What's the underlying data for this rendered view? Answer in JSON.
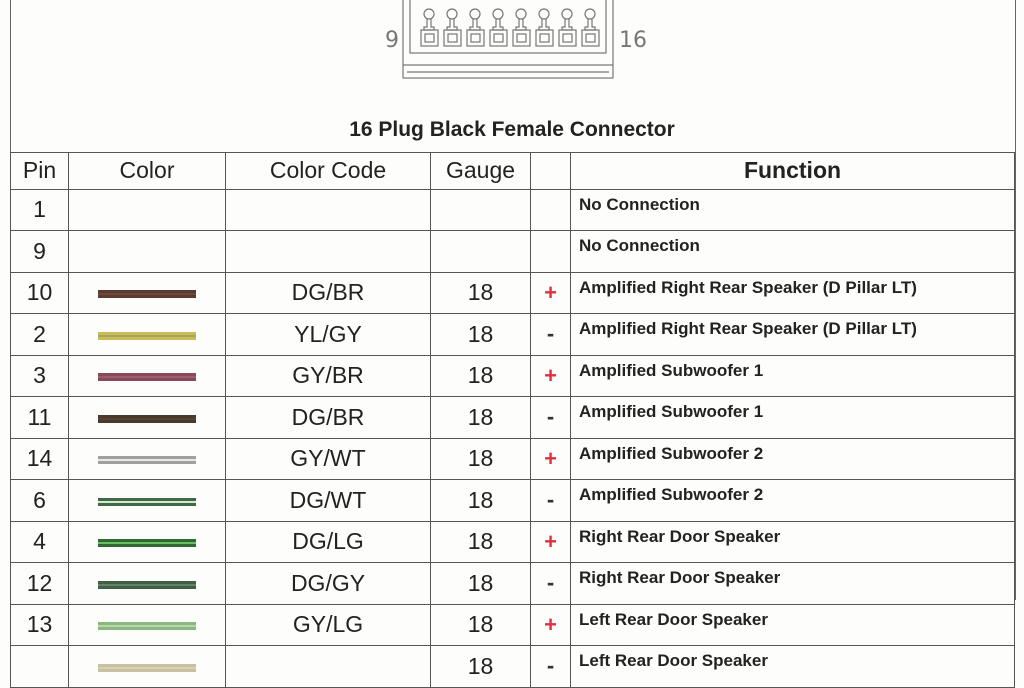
{
  "connector": {
    "left_label": "9",
    "right_label": "16"
  },
  "title": "16 Plug Black Female Connector",
  "headers": [
    "Pin",
    "Color",
    "Color Code",
    "Gauge",
    "",
    "Function"
  ],
  "rows": [
    {
      "pin": "1",
      "code": "",
      "gauge": "",
      "sign": "",
      "function": "No Connection",
      "colors": []
    },
    {
      "pin": "9",
      "code": "",
      "gauge": "",
      "sign": "",
      "function": "No Connection",
      "colors": []
    },
    {
      "pin": "10",
      "code": "DG/BR",
      "gauge": "18",
      "sign": "+",
      "function": "Amplified Right Rear Speaker (D Pillar LT)",
      "colors": [
        "#5a3d30",
        "#6a4a38"
      ]
    },
    {
      "pin": "2",
      "code": "YL/GY",
      "gauge": "18",
      "sign": "-",
      "function": "Amplified Right Rear Speaker (D Pillar LT)",
      "colors": [
        "#c8bf50",
        "#a8a070"
      ]
    },
    {
      "pin": "3",
      "code": "GY/BR",
      "gauge": "18",
      "sign": "+",
      "function": "Amplified Subwoofer 1",
      "colors": [
        "#8a4a55",
        "#9a6070"
      ]
    },
    {
      "pin": "11",
      "code": "DG/BR",
      "gauge": "18",
      "sign": "-",
      "function": "Amplified Subwoofer 1",
      "colors": [
        "#4a3a2e",
        "#55432f"
      ]
    },
    {
      "pin": "14",
      "code": "GY/WT",
      "gauge": "18",
      "sign": "+",
      "function": "Amplified Subwoofer 2",
      "colors": [
        "#a0a0a0",
        "#e8e8e8"
      ]
    },
    {
      "pin": "6",
      "code": "DG/WT",
      "gauge": "18",
      "sign": "-",
      "function": "Amplified Subwoofer 2",
      "colors": [
        "#3f6a45",
        "#d8e8d0"
      ]
    },
    {
      "pin": "4",
      "code": "DG/LG",
      "gauge": "18",
      "sign": "+",
      "function": "Right Rear Door Speaker",
      "colors": [
        "#2f6a35",
        "#6ac060"
      ]
    },
    {
      "pin": "12",
      "code": "DG/GY",
      "gauge": "18",
      "sign": "-",
      "function": "Right Rear Door Speaker",
      "colors": [
        "#3f6045",
        "#6a806a"
      ]
    },
    {
      "pin": "13",
      "code": "GY/LG",
      "gauge": "18",
      "sign": "+",
      "function": "Left Rear Door Speaker",
      "colors": [
        "#8ab880",
        "#b8d8a8"
      ]
    },
    {
      "pin": "",
      "code": "",
      "gauge": "18",
      "sign": "-",
      "function": "Left Rear Door Speaker",
      "colors": [
        "#c8c0a0",
        "#d8d0b0"
      ]
    }
  ]
}
